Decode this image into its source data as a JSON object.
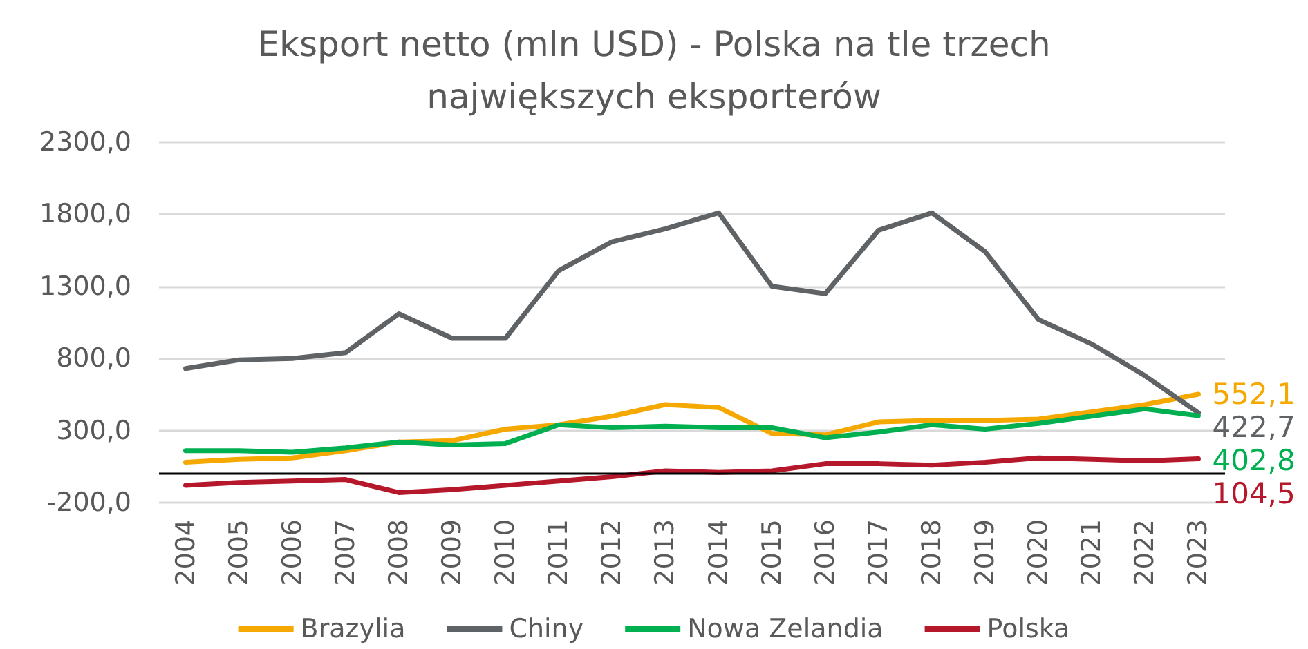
{
  "chart_data": {
    "type": "line",
    "title": "Eksport netto (mln USD) - Polska na tle trzech\nnajwiększych eksporterów",
    "categories": [
      "2004",
      "2005",
      "2006",
      "2007",
      "2008",
      "2009",
      "2010",
      "2011",
      "2012",
      "2013",
      "2014",
      "2015",
      "2016",
      "2017",
      "2018",
      "2019",
      "2020",
      "2021",
      "2022",
      "2023"
    ],
    "series": [
      {
        "name": "Brazylia",
        "color": "#f5a800",
        "values": [
          80,
          100,
          110,
          160,
          220,
          230,
          310,
          340,
          400,
          480,
          460,
          280,
          270,
          360,
          370,
          370,
          380,
          430,
          480,
          552.1
        ],
        "value_labels": [
          null,
          null,
          null,
          null,
          null,
          null,
          null,
          null,
          null,
          null,
          null,
          null,
          null,
          null,
          null,
          null,
          null,
          null,
          null,
          "552,1"
        ]
      },
      {
        "name": "Chiny",
        "color": "#5f6366",
        "values": [
          730,
          790,
          800,
          840,
          1110,
          940,
          940,
          1410,
          1610,
          1700,
          1810,
          1300,
          1250,
          1690,
          1810,
          1540,
          1070,
          900,
          680,
          422.7
        ],
        "value_labels": [
          null,
          null,
          null,
          null,
          null,
          null,
          null,
          null,
          null,
          null,
          null,
          null,
          null,
          null,
          null,
          null,
          null,
          null,
          null,
          "422,7"
        ]
      },
      {
        "name": "Nowa Zelandia",
        "color": "#00b050",
        "values": [
          160,
          160,
          150,
          180,
          220,
          200,
          210,
          340,
          320,
          330,
          320,
          320,
          250,
          290,
          340,
          310,
          350,
          400,
          450,
          402.8
        ],
        "value_labels": [
          null,
          null,
          null,
          null,
          null,
          null,
          null,
          null,
          null,
          null,
          null,
          null,
          null,
          null,
          null,
          null,
          null,
          null,
          null,
          "402,8"
        ]
      },
      {
        "name": "Polska",
        "color": "#b5172b",
        "values": [
          -80,
          -60,
          -50,
          -40,
          -130,
          -110,
          -80,
          -50,
          -20,
          20,
          10,
          20,
          70,
          70,
          60,
          80,
          110,
          100,
          90,
          104.5
        ],
        "value_labels": [
          null,
          null,
          null,
          null,
          null,
          null,
          null,
          null,
          null,
          null,
          null,
          null,
          null,
          null,
          null,
          null,
          null,
          null,
          null,
          "104,5"
        ]
      }
    ],
    "ylim": [
      -200,
      2300
    ],
    "yticks": [
      {
        "value": -200,
        "label": "-200,0"
      },
      {
        "value": 300,
        "label": "300,0"
      },
      {
        "value": 800,
        "label": "800,0"
      },
      {
        "value": 1300,
        "label": "1300,0"
      },
      {
        "value": 1800,
        "label": "1800,0"
      },
      {
        "value": 2300,
        "label": "2300,0"
      }
    ],
    "ref_lines": [
      {
        "axis": "y",
        "value": 0,
        "color": "#000000"
      }
    ],
    "grid": "y",
    "legend": "bottom",
    "marker": "none",
    "line_style": "solid"
  }
}
